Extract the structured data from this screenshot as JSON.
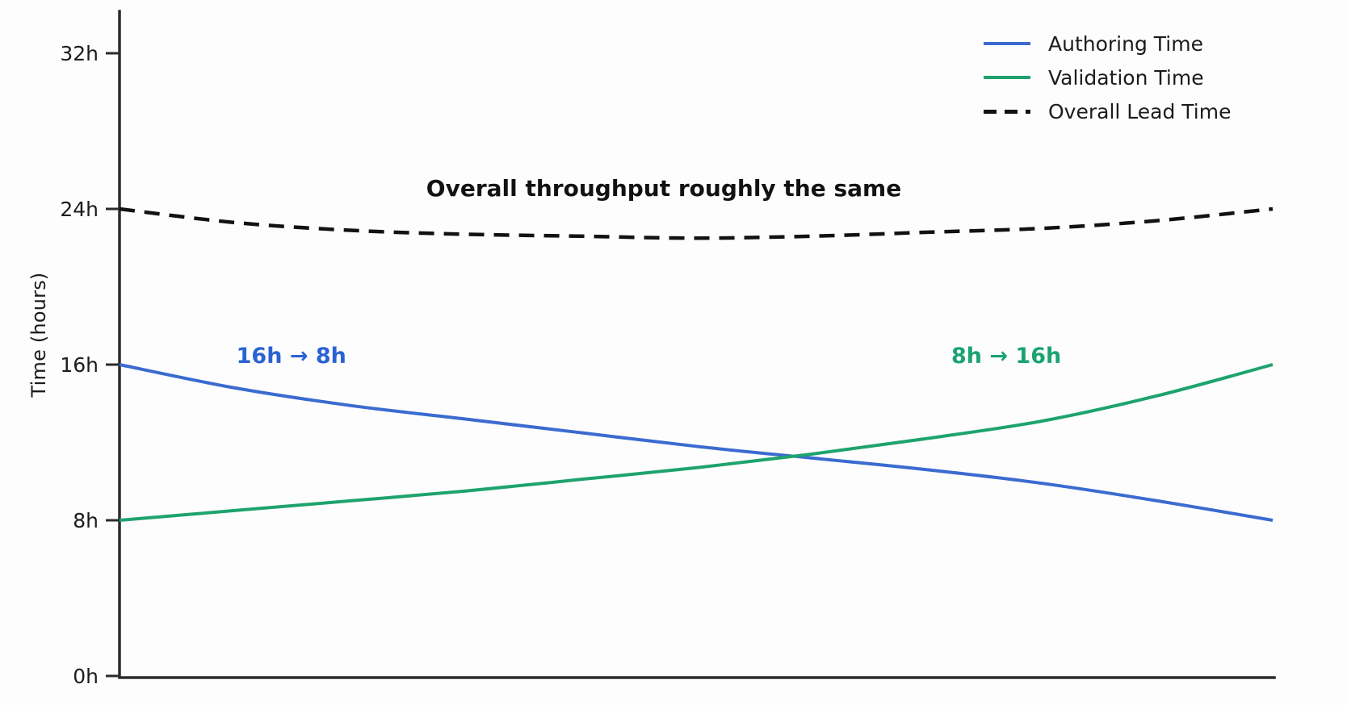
{
  "chart_data": {
    "type": "line",
    "title": "",
    "xlabel": "",
    "ylabel": "Time (hours)",
    "xlim": [
      0,
      10
    ],
    "ylim": [
      0,
      33.5
    ],
    "grid": false,
    "legend_position": "upper right",
    "x": [
      0,
      1,
      2,
      3,
      4,
      5,
      6,
      7,
      8,
      9,
      10
    ],
    "series": [
      {
        "name": "Authoring Time",
        "color": "#3b6bd0",
        "style": "solid",
        "values": [
          16.0,
          14.8,
          13.9,
          13.2,
          12.5,
          11.8,
          11.2,
          10.6,
          9.9,
          9.0,
          8.0
        ]
      },
      {
        "name": "Validation Time",
        "color": "#1ea36d",
        "style": "solid",
        "values": [
          8.0,
          8.5,
          9.0,
          9.5,
          10.1,
          10.7,
          11.4,
          12.2,
          13.1,
          14.4,
          16.0
        ]
      },
      {
        "name": "Overall Lead Time",
        "color": "#121212",
        "style": "dashed",
        "values": [
          24.0,
          23.3,
          22.9,
          22.7,
          22.6,
          22.5,
          22.6,
          22.8,
          23.0,
          23.4,
          24.0
        ]
      }
    ],
    "yticks": [
      {
        "value": 0,
        "label": "0h"
      },
      {
        "value": 8,
        "label": "8h"
      },
      {
        "value": 16,
        "label": "16h"
      },
      {
        "value": 24,
        "label": "24h"
      },
      {
        "value": 32,
        "label": "32h"
      }
    ],
    "annotations": [
      {
        "text": "16h → 8h",
        "x": 1.49,
        "y": 16.4,
        "color": "#2b62d3",
        "size": 27
      },
      {
        "text": "8h → 16h",
        "x": 7.69,
        "y": 16.4,
        "color": "#1aa371",
        "size": 27
      },
      {
        "text": "Overall throughput roughly the same",
        "x": 4.72,
        "y": 25.0,
        "color": "#121212",
        "size": 28
      }
    ],
    "axis_color": "#2b2b2b",
    "tick_label_color": "#1c1c1c"
  }
}
